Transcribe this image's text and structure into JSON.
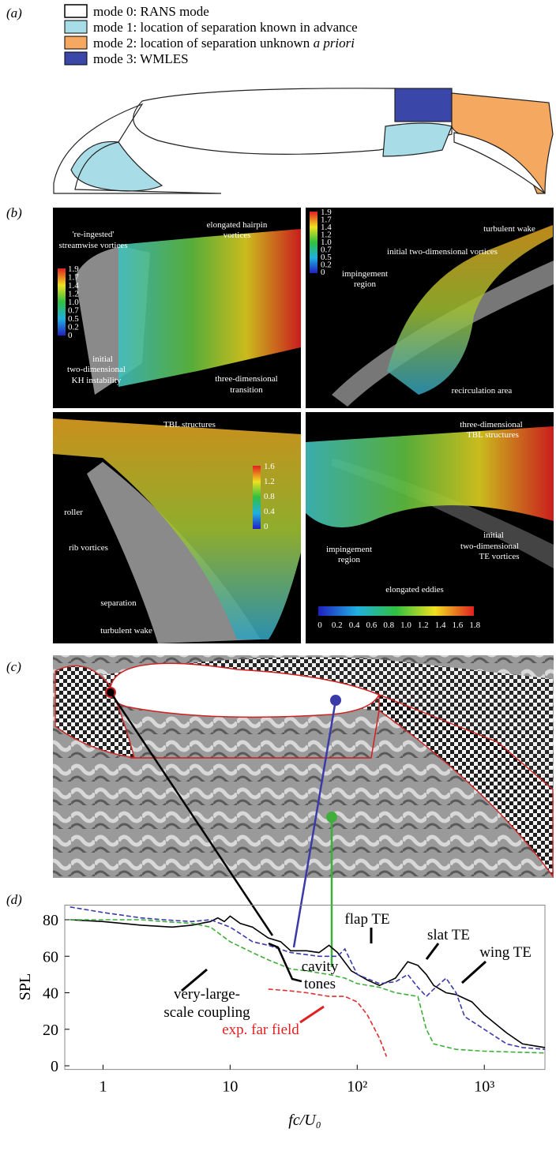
{
  "panel_a": {
    "label": "(a)",
    "legend": [
      "mode 0: RANS mode",
      "mode 1: location of separation known in advance",
      "mode 2: location of separation unknown",
      "a priori",
      "mode 3: WMLES"
    ]
  },
  "panel_b": {
    "label": "(b)",
    "top_left": {
      "texts": [
        "'re-ingested'",
        "streamwise vortices",
        "elongated hairpin",
        "vortices",
        "initial",
        "two-dimensional",
        "KH instability",
        "three-dimensional",
        "transition"
      ],
      "colorbar": [
        "1.9",
        "1.7",
        "1.4",
        "1.2",
        "1.0",
        "0.7",
        "0.5",
        "0.2",
        "0"
      ]
    },
    "top_right": {
      "texts": [
        "turbulent wake",
        "initial two-dimensional vortices",
        "impingement",
        "region",
        "recirculation area"
      ],
      "colorbar": [
        "1.9",
        "1.7",
        "1.4",
        "1.2",
        "1.0",
        "0.7",
        "0.5",
        "0.2",
        "0"
      ]
    },
    "bottom_left": {
      "texts": [
        "TBL structures",
        "roller",
        "rib vortices",
        "separation",
        "turbulent wake"
      ],
      "colorbar": [
        "1.6",
        "1.2",
        "0.8",
        "0.4",
        "0"
      ]
    },
    "bottom_right": {
      "texts": [
        "three-dimensional",
        "TBL structures",
        "impingement",
        "region",
        "initial",
        "two-dimensional",
        "TE vortices",
        "elongated eddies"
      ],
      "colorbar": [
        "0",
        "0.2",
        "0.4",
        "0.6",
        "0.8",
        "1.0",
        "1.2",
        "1.4",
        "1.6",
        "1.8"
      ]
    }
  },
  "panel_c": {
    "label": "(c)"
  },
  "panel_d": {
    "label": "(d)"
  },
  "chart_data": {
    "type": "line",
    "xlabel": "fc/U₀",
    "ylabel": "SPL",
    "log_x": true,
    "xlim": [
      0.5,
      3000
    ],
    "ylim": [
      -2,
      88
    ],
    "xticks": [
      1,
      10,
      {
        "value": 100,
        "label": "10²"
      },
      {
        "value": 1000,
        "label": "10³"
      }
    ],
    "yticks": [
      0,
      20,
      40,
      60,
      80
    ],
    "series": [
      {
        "color": "#000000",
        "dashed": false,
        "x": [
          0.55,
          1,
          2,
          3.5,
          5,
          7,
          8,
          9,
          10,
          12,
          15,
          20,
          25,
          30,
          40,
          50,
          60,
          70,
          90,
          120,
          150,
          200,
          250,
          300,
          350,
          400,
          500,
          600,
          800,
          1000,
          1500,
          2000,
          3000
        ],
        "values": [
          80,
          79,
          77,
          76,
          77,
          79,
          81,
          79,
          82,
          78,
          76,
          70,
          68,
          63,
          63,
          62,
          66,
          62,
          52,
          47,
          44,
          48,
          57,
          55,
          50,
          44,
          40,
          39,
          35,
          28,
          18,
          12,
          10
        ]
      },
      {
        "color": "#3a3aa8",
        "dashed": true,
        "x": [
          0.55,
          1,
          2,
          3,
          5,
          7,
          10,
          15,
          20,
          30,
          50,
          70,
          80,
          100,
          150,
          200,
          250,
          300,
          350,
          400,
          500,
          600,
          700,
          1000,
          1500,
          2000,
          3000
        ],
        "values": [
          87,
          84,
          81,
          80,
          79,
          80,
          76,
          68,
          66,
          62,
          60,
          60,
          64,
          50,
          45,
          46,
          50,
          43,
          38,
          42,
          48,
          40,
          27,
          20,
          12,
          10,
          9
        ]
      },
      {
        "color": "#3fae3a",
        "dashed": true,
        "x": [
          0.55,
          1,
          2,
          3,
          5,
          7,
          10,
          15,
          20,
          30,
          40,
          60,
          80,
          100,
          150,
          200,
          300,
          350,
          400,
          600,
          1000,
          3000
        ],
        "values": [
          80,
          80,
          80,
          79,
          78,
          76,
          68,
          62,
          58,
          53,
          52,
          50,
          48,
          45,
          43,
          40,
          38,
          20,
          12,
          9,
          8,
          7
        ]
      },
      {
        "color": "#e03030",
        "dashed": true,
        "x": [
          20,
          30,
          40,
          60,
          80,
          100,
          120,
          150,
          170
        ],
        "values": [
          42,
          41,
          40,
          38,
          38,
          35,
          28,
          15,
          5
        ]
      }
    ],
    "annotations": [
      "flap TE",
      "slat TE",
      "wing TE",
      "cavity",
      "tones",
      "very-large-",
      "scale coupling",
      "exp. far field"
    ]
  }
}
